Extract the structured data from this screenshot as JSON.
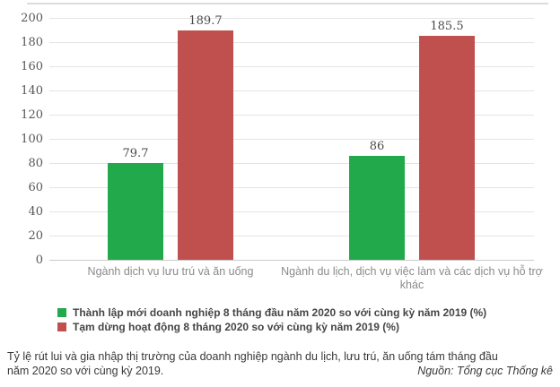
{
  "chart_data": {
    "type": "bar",
    "categories": [
      "Ngành dịch vụ lưu trú và ăn uống",
      "Ngành du lịch, dịch vụ việc làm và các dịch vụ hỗ trợ khác"
    ],
    "series": [
      {
        "name": "Thành lập mới doanh nghiệp 8 tháng đầu năm 2020 so với cùng kỳ năm 2019 (%)",
        "color": "#21A94C",
        "values": [
          79.7,
          86
        ]
      },
      {
        "name": "Tạm dừng hoạt động 8 tháng 2020 so với cùng kỳ năm 2019 (%)",
        "color": "#C0504D",
        "values": [
          189.7,
          185.5
        ]
      }
    ],
    "value_labels": [
      [
        "79.7",
        "86"
      ],
      [
        "189.7",
        "185.5"
      ]
    ],
    "title": "",
    "xlabel": "",
    "ylabel": "",
    "ylim": [
      0,
      200
    ],
    "yticks": [
      0,
      20,
      40,
      60,
      80,
      100,
      120,
      140,
      160,
      180,
      200
    ],
    "grid": true,
    "legend_position": "bottom-left"
  },
  "footer": {
    "caption": "Tỷ lệ rút lui và gia nhập thị trường của doanh nghiệp ngành du lịch, lưu trú, ăn uống tám tháng đầu năm 2020 so với cùng kỳ 2019.",
    "caption_line1": "Tỷ lệ rút lui và gia nhập thị trường của doanh nghiệp ngành du lịch, lưu trú, ăn uống tám tháng đầu",
    "caption_line2": "năm 2020 so với cùng kỳ 2019.",
    "source": "Nguồn: Tổng cục Thống kê"
  },
  "colors": {
    "bar_green": "#21A94C",
    "bar_red": "#C0504D",
    "gridline": "#e4e4e4",
    "axis_line": "#c9c9c9",
    "tick_text": "#595959",
    "category_text": "#8a8a8a",
    "legend_text": "#454545",
    "footer_text": "#383838"
  }
}
